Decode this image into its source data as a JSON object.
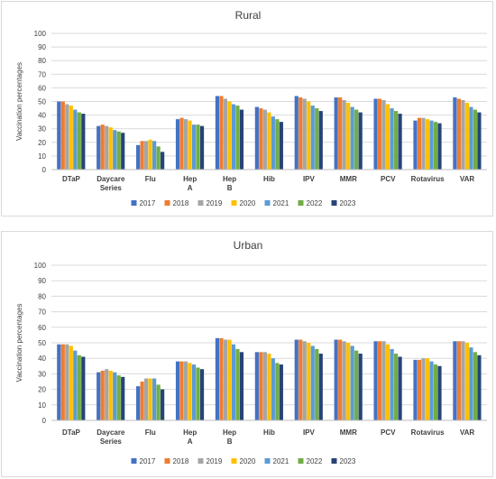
{
  "chart_data": [
    {
      "type": "bar",
      "title": "Rural",
      "ylabel": "Vaccination percentages",
      "xlabel": "",
      "ylim": [
        0,
        100
      ],
      "yticks": [
        0,
        10,
        20,
        30,
        40,
        50,
        60,
        70,
        80,
        90,
        100
      ],
      "grid": true,
      "legend_position": "bottom",
      "categories": [
        "DTaP",
        "Daycare Series",
        "Flu",
        "Hep A",
        "Hep B",
        "Hib",
        "IPV",
        "MMR",
        "PCV",
        "Rotavirus",
        "VAR"
      ],
      "series": [
        {
          "name": "2017",
          "color": "#4472c4",
          "values": [
            50,
            32,
            18,
            37,
            54,
            46,
            54,
            53,
            52,
            36,
            53
          ]
        },
        {
          "name": "2018",
          "color": "#ed7d31",
          "values": [
            50,
            33,
            21,
            38,
            54,
            45,
            53,
            53,
            52,
            38,
            52
          ]
        },
        {
          "name": "2019",
          "color": "#a5a5a5",
          "values": [
            48,
            32,
            21,
            37,
            52,
            44,
            52,
            51,
            51,
            38,
            51
          ]
        },
        {
          "name": "2020",
          "color": "#ffc000",
          "values": [
            47,
            31,
            22,
            36,
            50,
            42,
            50,
            49,
            48,
            37,
            49
          ]
        },
        {
          "name": "2021",
          "color": "#5b9bd5",
          "values": [
            44,
            29,
            21,
            33,
            48,
            39,
            47,
            46,
            45,
            36,
            46
          ]
        },
        {
          "name": "2022",
          "color": "#70ad47",
          "values": [
            42,
            28,
            17,
            33,
            47,
            37,
            45,
            44,
            43,
            35,
            44
          ]
        },
        {
          "name": "2023",
          "color": "#264478",
          "values": [
            41,
            27,
            13,
            32,
            44,
            35,
            43,
            42,
            41,
            34,
            42
          ]
        }
      ]
    },
    {
      "type": "bar",
      "title": "Urban",
      "ylabel": "Vaccination percentages",
      "xlabel": "",
      "ylim": [
        0,
        100
      ],
      "yticks": [
        0,
        10,
        20,
        30,
        40,
        50,
        60,
        70,
        80,
        90,
        100
      ],
      "grid": true,
      "legend_position": "bottom",
      "categories": [
        "DTaP",
        "Daycare Series",
        "Flu",
        "Hep A",
        "Hep B",
        "Hib",
        "IPV",
        "MMR",
        "PCV",
        "Rotavirus",
        "VAR"
      ],
      "series": [
        {
          "name": "2017",
          "color": "#4472c4",
          "values": [
            49,
            31,
            22,
            38,
            53,
            44,
            52,
            52,
            51,
            39,
            51
          ]
        },
        {
          "name": "2018",
          "color": "#ed7d31",
          "values": [
            49,
            32,
            25,
            38,
            53,
            44,
            52,
            52,
            51,
            39,
            51
          ]
        },
        {
          "name": "2019",
          "color": "#a5a5a5",
          "values": [
            49,
            33,
            27,
            38,
            52,
            44,
            51,
            51,
            51,
            40,
            51
          ]
        },
        {
          "name": "2020",
          "color": "#ffc000",
          "values": [
            48,
            32,
            27,
            37,
            52,
            43,
            50,
            50,
            49,
            40,
            50
          ]
        },
        {
          "name": "2021",
          "color": "#5b9bd5",
          "values": [
            45,
            31,
            27,
            36,
            49,
            40,
            48,
            48,
            46,
            38,
            47
          ]
        },
        {
          "name": "2022",
          "color": "#70ad47",
          "values": [
            42,
            29,
            23,
            34,
            46,
            37,
            46,
            45,
            43,
            36,
            44
          ]
        },
        {
          "name": "2023",
          "color": "#264478",
          "values": [
            41,
            28,
            20,
            33,
            44,
            36,
            43,
            43,
            41,
            35,
            42
          ]
        }
      ]
    }
  ]
}
